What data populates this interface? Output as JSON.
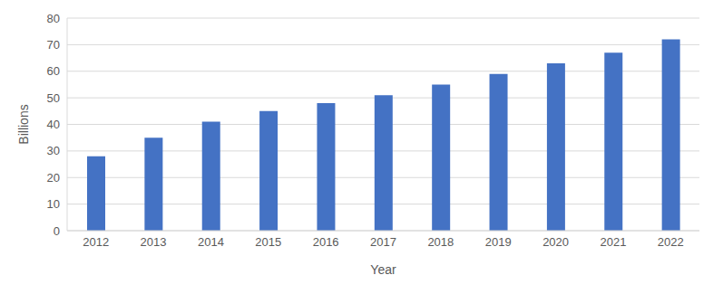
{
  "chart_data": {
    "type": "bar",
    "x_label": "Year",
    "y_label": "Billions",
    "categories": [
      "2012",
      "2013",
      "2014",
      "2015",
      "2016",
      "2017",
      "2018",
      "2019",
      "2020",
      "2021",
      "2022"
    ],
    "values": [
      28,
      35,
      41,
      45,
      48,
      51,
      55,
      59,
      63,
      67,
      72
    ],
    "color": "#4472c4",
    "ylim": [
      0,
      80
    ],
    "yticks": [
      0,
      10,
      20,
      30,
      40,
      50,
      60,
      70,
      80
    ],
    "grid": true
  }
}
